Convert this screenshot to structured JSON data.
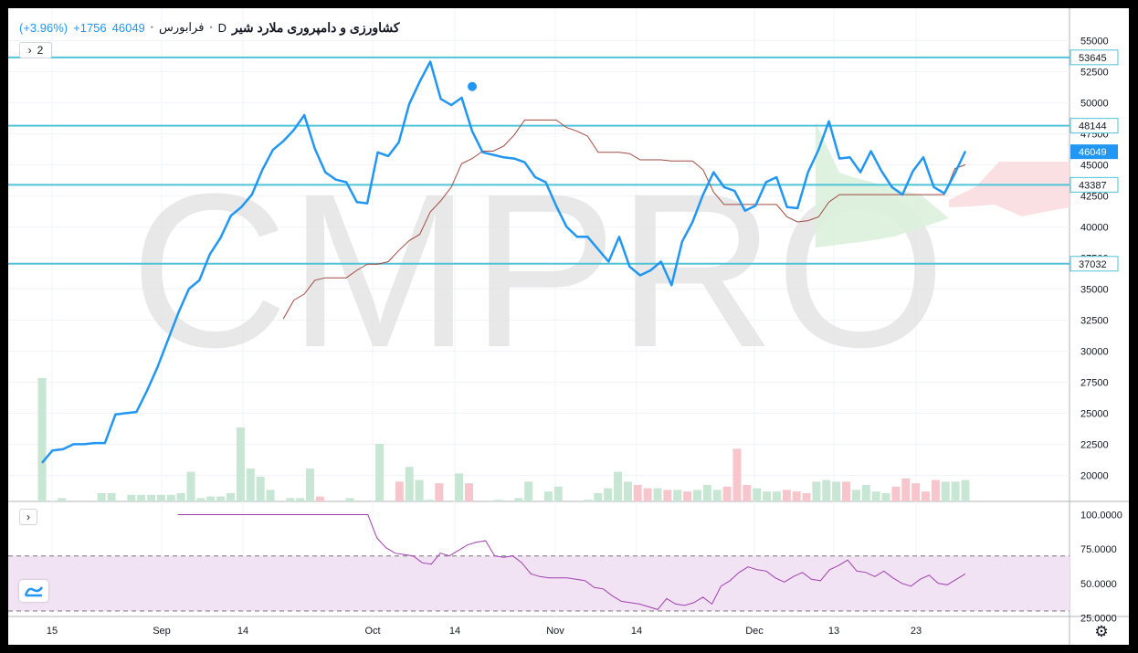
{
  "header": {
    "title": "کشاورزی و دامپروری ملارد شیر",
    "interval": "D",
    "exchange": "فرابورس",
    "price": "46049",
    "change": "+1756",
    "change_pct": "(+3.96%)"
  },
  "legend_button": {
    "label": "2"
  },
  "watermark": "CMPRO",
  "colors": {
    "price_line": "#2196f3",
    "ma_line": "#a04a40",
    "h_lines": "#4fc3d7",
    "volume_up": "#c8e6d4",
    "volume_down": "#f7c6cc",
    "rsi_line": "#a040b0",
    "rsi_band": "#f1e3f3",
    "cloud_green": "#dcefdc",
    "cloud_red": "#fbdde0"
  },
  "chart_data": [
    {
      "type": "line",
      "name": "price",
      "x_ticks": [
        "15",
        "Sep",
        "14",
        "Oct",
        "14",
        "Nov",
        "14",
        "Dec",
        "13",
        "23"
      ],
      "y_ticks": [
        "55000",
        "52500",
        "50000",
        "47500",
        "45000",
        "42500",
        "40000",
        "37500",
        "35000",
        "32500",
        "30000",
        "27500",
        "25000",
        "22500",
        "20000"
      ],
      "ylim": [
        17900,
        56500
      ],
      "series": [
        {
          "values": [
            21000,
            22000,
            22100,
            22500,
            22500,
            22600,
            22600,
            24900,
            25000,
            25100,
            26800,
            28700,
            30900,
            33100,
            35000,
            35700,
            37800,
            39100,
            40900,
            41600,
            42600,
            44600,
            46200,
            46900,
            47800,
            49000,
            46300,
            44400,
            43800,
            43600,
            42000,
            41900,
            46000,
            45700,
            46800,
            49900,
            51700,
            53300,
            50300,
            49800,
            50400,
            47700,
            46000,
            45800,
            45600,
            45500,
            45200,
            44000,
            43600,
            41700,
            40000,
            39200,
            39200,
            38200,
            37200,
            39200,
            36800,
            36100,
            36500,
            37200,
            35300,
            38800,
            40400,
            42600,
            44400,
            43200,
            42900,
            41300,
            41700,
            43600,
            44000,
            41600,
            41500,
            44400,
            46200,
            48500,
            45500,
            45600,
            44400,
            46100,
            44500,
            43200,
            42600,
            44500,
            45600,
            43200,
            42700,
            44300,
            46100
          ]
        },
        {
          "values": [
            null,
            null,
            null,
            null,
            null,
            null,
            null,
            null,
            null,
            null,
            null,
            null,
            null,
            null,
            null,
            null,
            null,
            null,
            null,
            null,
            null,
            null,
            null,
            32600,
            34100,
            34600,
            35700,
            35900,
            35900,
            35900,
            36500,
            37000,
            37000,
            37200,
            38100,
            38900,
            39400,
            41200,
            42100,
            43200,
            45100,
            45500,
            46100,
            46100,
            46500,
            47400,
            48600,
            48600,
            48600,
            48600,
            48000,
            47700,
            47300,
            46000,
            46000,
            46000,
            45900,
            45400,
            45400,
            45400,
            45300,
            45300,
            45300,
            44600,
            42800,
            41800,
            41800,
            41800,
            41800,
            41800,
            41800,
            40800,
            40400,
            40500,
            40800,
            42000,
            42600,
            42600,
            42600,
            42600,
            42600,
            42600,
            42600,
            42600,
            42600,
            42600,
            42600,
            44700,
            45000
          ]
        }
      ],
      "horizontal_levels": [
        "53645",
        "48144",
        "43387",
        "37032"
      ],
      "current_price": "46049",
      "current_index": 88,
      "marker": {
        "index": 41,
        "value": 51300
      },
      "volume": [
        {
          "v": 0.75,
          "d": "up"
        },
        {
          "v": 0,
          "d": "up"
        },
        {
          "v": 0.02,
          "d": "up"
        },
        {
          "v": 0,
          "d": "up"
        },
        {
          "v": 0,
          "d": "up"
        },
        {
          "v": 0,
          "d": "up"
        },
        {
          "v": 0.05,
          "d": "up"
        },
        {
          "v": 0.05,
          "d": "up"
        },
        {
          "v": 0,
          "d": "up"
        },
        {
          "v": 0.04,
          "d": "up"
        },
        {
          "v": 0.04,
          "d": "up"
        },
        {
          "v": 0.04,
          "d": "up"
        },
        {
          "v": 0.04,
          "d": "up"
        },
        {
          "v": 0.04,
          "d": "up"
        },
        {
          "v": 0.05,
          "d": "up"
        },
        {
          "v": 0.18,
          "d": "up"
        },
        {
          "v": 0.02,
          "d": "up"
        },
        {
          "v": 0.03,
          "d": "up"
        },
        {
          "v": 0.03,
          "d": "up"
        },
        {
          "v": 0.05,
          "d": "up"
        },
        {
          "v": 0.45,
          "d": "up"
        },
        {
          "v": 0.2,
          "d": "up"
        },
        {
          "v": 0.15,
          "d": "up"
        },
        {
          "v": 0.07,
          "d": "up"
        },
        {
          "v": 0,
          "d": "up"
        },
        {
          "v": 0.02,
          "d": "up"
        },
        {
          "v": 0.02,
          "d": "up"
        },
        {
          "v": 0.2,
          "d": "up"
        },
        {
          "v": 0.03,
          "d": "down"
        },
        {
          "v": 0,
          "d": "up"
        },
        {
          "v": 0,
          "d": "up"
        },
        {
          "v": 0.02,
          "d": "up"
        },
        {
          "v": 0,
          "d": "up"
        },
        {
          "v": 0,
          "d": "up"
        },
        {
          "v": 0.35,
          "d": "up"
        },
        {
          "v": 0,
          "d": "up"
        },
        {
          "v": 0.12,
          "d": "down"
        },
        {
          "v": 0.21,
          "d": "up"
        },
        {
          "v": 0.13,
          "d": "up"
        },
        {
          "v": 0.01,
          "d": "up"
        },
        {
          "v": 0.11,
          "d": "down"
        },
        {
          "v": 0,
          "d": "up"
        },
        {
          "v": 0.17,
          "d": "up"
        },
        {
          "v": 0.11,
          "d": "down"
        },
        {
          "v": 0,
          "d": "up"
        },
        {
          "v": 0,
          "d": "up"
        },
        {
          "v": 0.01,
          "d": "up"
        },
        {
          "v": 0,
          "d": "up"
        },
        {
          "v": 0.02,
          "d": "up"
        },
        {
          "v": 0.12,
          "d": "up"
        },
        {
          "v": 0,
          "d": "up"
        },
        {
          "v": 0.06,
          "d": "up"
        },
        {
          "v": 0.09,
          "d": "up"
        },
        {
          "v": 0,
          "d": "up"
        },
        {
          "v": 0,
          "d": "up"
        },
        {
          "v": 0.01,
          "d": "up"
        },
        {
          "v": 0.05,
          "d": "up"
        },
        {
          "v": 0.08,
          "d": "up"
        },
        {
          "v": 0.18,
          "d": "up"
        },
        {
          "v": 0.12,
          "d": "up"
        },
        {
          "v": 0.1,
          "d": "down"
        },
        {
          "v": 0.08,
          "d": "down"
        },
        {
          "v": 0.08,
          "d": "up"
        },
        {
          "v": 0.07,
          "d": "down"
        },
        {
          "v": 0.07,
          "d": "up"
        },
        {
          "v": 0.06,
          "d": "down"
        },
        {
          "v": 0.07,
          "d": "up"
        },
        {
          "v": 0.1,
          "d": "up"
        },
        {
          "v": 0.07,
          "d": "up"
        },
        {
          "v": 0.09,
          "d": "down"
        },
        {
          "v": 0.32,
          "d": "down"
        },
        {
          "v": 0.1,
          "d": "down"
        },
        {
          "v": 0.08,
          "d": "up"
        },
        {
          "v": 0.06,
          "d": "up"
        },
        {
          "v": 0.06,
          "d": "up"
        },
        {
          "v": 0.07,
          "d": "down"
        },
        {
          "v": 0.06,
          "d": "down"
        },
        {
          "v": 0.05,
          "d": "down"
        },
        {
          "v": 0.12,
          "d": "up"
        },
        {
          "v": 0.13,
          "d": "up"
        },
        {
          "v": 0.12,
          "d": "up"
        },
        {
          "v": 0.12,
          "d": "down"
        },
        {
          "v": 0.07,
          "d": "up"
        },
        {
          "v": 0.1,
          "d": "up"
        },
        {
          "v": 0.06,
          "d": "up"
        },
        {
          "v": 0.05,
          "d": "up"
        },
        {
          "v": 0.09,
          "d": "down"
        },
        {
          "v": 0.14,
          "d": "down"
        },
        {
          "v": 0.11,
          "d": "down"
        },
        {
          "v": 0.06,
          "d": "down"
        },
        {
          "v": 0.13,
          "d": "down"
        },
        {
          "v": 0.12,
          "d": "up"
        },
        {
          "v": 0.12,
          "d": "up"
        },
        {
          "v": 0.13,
          "d": "up"
        }
      ]
    },
    {
      "type": "line",
      "name": "rsi",
      "y_ticks": [
        "100.0000",
        "75.0000",
        "50.0000",
        "25.0000"
      ],
      "ylim": [
        20,
        103
      ],
      "band": [
        30,
        70
      ],
      "values": [
        null,
        null,
        null,
        null,
        null,
        null,
        null,
        null,
        null,
        null,
        null,
        null,
        null,
        null,
        null,
        100,
        100,
        100,
        100,
        100,
        100,
        100,
        100,
        100,
        100,
        100,
        100,
        100,
        100,
        100,
        100,
        100,
        100,
        100,
        100,
        100,
        100,
        83,
        76,
        72,
        71,
        70,
        65,
        64,
        72,
        70,
        74,
        78,
        80,
        81,
        70,
        69,
        70,
        65,
        57,
        55,
        54,
        54,
        54,
        53,
        52,
        47,
        46,
        41,
        37,
        36,
        35,
        33,
        31,
        39,
        35,
        34,
        36,
        40,
        35,
        48,
        52,
        58,
        62,
        60,
        59,
        54,
        51,
        55,
        58,
        53,
        52,
        60,
        63,
        67,
        59,
        58,
        55,
        59,
        54,
        50,
        48,
        53,
        56,
        50,
        49,
        53,
        57
      ]
    }
  ]
}
